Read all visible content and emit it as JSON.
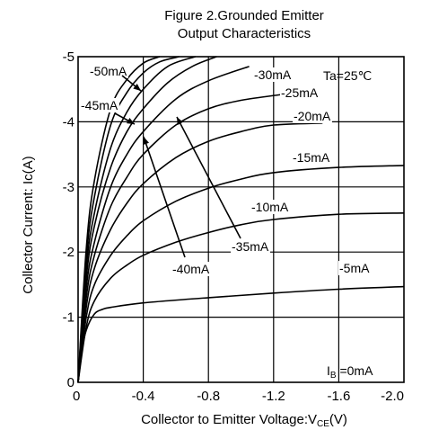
{
  "chart_data": {
    "type": "line",
    "title": "Figure 2.Grounded Emitter",
    "subtitle": "Output Characteristics",
    "xlabel": "Collector  to Emitter Voltage:V",
    "xlabel_sub": "CE",
    "xlabel_unit": "(V)",
    "ylabel": "Collector Current: Ic(A)",
    "condition": "Ta=25℃",
    "xlim": [
      0,
      -2.0
    ],
    "ylim": [
      0,
      -5
    ],
    "x_ticks": [
      0,
      -0.4,
      -0.8,
      -1.2,
      -1.6,
      -2.0
    ],
    "x_tick_labels": [
      "0",
      "-0.4",
      "-0.8",
      "-1.2",
      "-1.6",
      "-2.0"
    ],
    "y_ticks": [
      0,
      -1,
      -2,
      -3,
      -4,
      -5
    ],
    "y_tick_labels": [
      "0",
      "-1",
      "-2",
      "-3",
      "-4",
      "-5"
    ],
    "grid": true,
    "legend": "inline labels",
    "series": [
      {
        "name": "-5mA",
        "x": [
          0,
          -0.02,
          -0.05,
          -0.1,
          -0.15,
          -0.2,
          -0.4,
          -0.8,
          -1.2,
          -1.6,
          -2.0
        ],
        "y": [
          0,
          -0.45,
          -0.8,
          -1.05,
          -1.12,
          -1.15,
          -1.22,
          -1.3,
          -1.37,
          -1.43,
          -1.47
        ]
      },
      {
        "name": "-10mA",
        "x": [
          0,
          -0.05,
          -0.1,
          -0.2,
          -0.3,
          -0.4,
          -0.6,
          -0.8,
          -1.0,
          -1.2,
          -1.6,
          -2.0
        ],
        "y": [
          0,
          -0.85,
          -1.25,
          -1.6,
          -1.8,
          -1.95,
          -2.15,
          -2.3,
          -2.42,
          -2.5,
          -2.58,
          -2.6
        ]
      },
      {
        "name": "-15mA",
        "x": [
          0,
          -0.05,
          -0.1,
          -0.2,
          -0.3,
          -0.4,
          -0.6,
          -0.8,
          -1.0,
          -1.2,
          -1.6,
          -2.0
        ],
        "y": [
          0,
          -1.0,
          -1.5,
          -1.95,
          -2.25,
          -2.48,
          -2.78,
          -2.98,
          -3.12,
          -3.22,
          -3.3,
          -3.33
        ]
      },
      {
        "name": "-20mA",
        "x": [
          0,
          -0.05,
          -0.1,
          -0.2,
          -0.3,
          -0.4,
          -0.6,
          -0.8,
          -1.0,
          -1.2,
          -1.5
        ],
        "y": [
          0,
          -1.15,
          -1.75,
          -2.35,
          -2.75,
          -3.05,
          -3.45,
          -3.7,
          -3.85,
          -3.95,
          -3.98
        ]
      },
      {
        "name": "-25mA",
        "x": [
          0,
          -0.05,
          -0.1,
          -0.2,
          -0.3,
          -0.4,
          -0.6,
          -0.8,
          -1.0,
          -1.25
        ],
        "y": [
          0,
          -1.3,
          -1.95,
          -2.7,
          -3.15,
          -3.5,
          -3.95,
          -4.2,
          -4.33,
          -4.42
        ]
      },
      {
        "name": "-30mA",
        "x": [
          0,
          -0.05,
          -0.1,
          -0.2,
          -0.3,
          -0.4,
          -0.6,
          -0.8,
          -1.05
        ],
        "y": [
          0,
          -1.45,
          -2.15,
          -3.0,
          -3.5,
          -3.85,
          -4.35,
          -4.63,
          -4.85
        ]
      },
      {
        "name": "-35mA",
        "x": [
          0,
          -0.05,
          -0.1,
          -0.2,
          -0.3,
          -0.4,
          -0.55,
          -0.7,
          -0.85
        ],
        "y": [
          0,
          -1.6,
          -2.4,
          -3.3,
          -3.85,
          -4.2,
          -4.6,
          -4.85,
          -5.0
        ]
      },
      {
        "name": "-40mA",
        "x": [
          0,
          -0.05,
          -0.1,
          -0.2,
          -0.3,
          -0.4,
          -0.55,
          -0.72
        ],
        "y": [
          0,
          -1.75,
          -2.6,
          -3.6,
          -4.15,
          -4.5,
          -4.85,
          -5.0
        ]
      },
      {
        "name": "-45mA",
        "x": [
          0,
          -0.05,
          -0.1,
          -0.2,
          -0.3,
          -0.4,
          -0.5,
          -0.62
        ],
        "y": [
          0,
          -1.9,
          -2.85,
          -3.95,
          -4.45,
          -4.75,
          -4.92,
          -5.0
        ]
      },
      {
        "name": "-50mA",
        "x": [
          0,
          -0.05,
          -0.1,
          -0.2,
          -0.3,
          -0.4,
          -0.5
        ],
        "y": [
          0,
          -2.05,
          -3.1,
          -4.2,
          -4.65,
          -4.9,
          -5.0
        ]
      }
    ],
    "base_current_label": "Ib =0mA",
    "base_current_label_sub": "B",
    "base_current_label_rest": " =0mA",
    "base_current_label_main": "I"
  }
}
